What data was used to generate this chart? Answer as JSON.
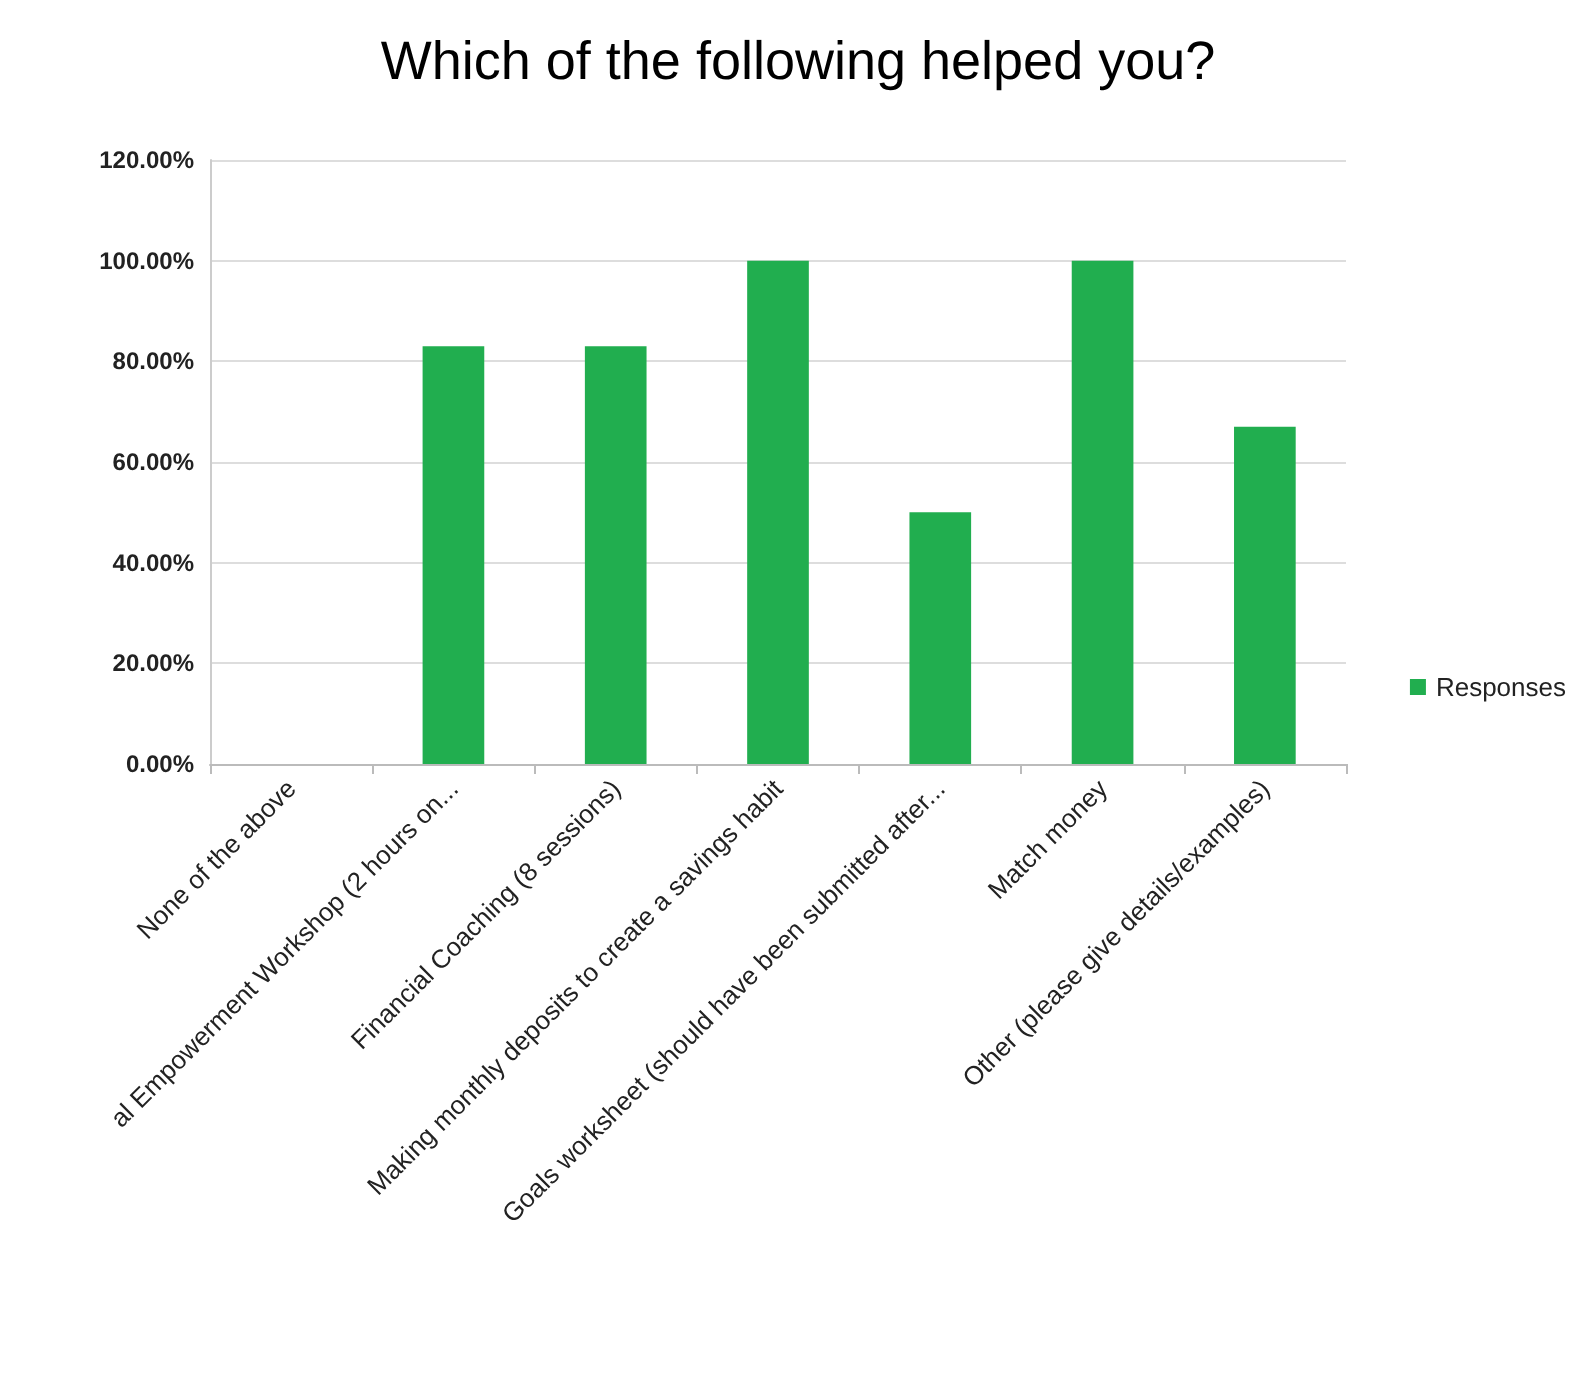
{
  "chart_data": {
    "type": "bar",
    "title": "Which of the following helped you?",
    "categories": [
      "None of the above",
      "al Empowerment Workshop (2 hours on...",
      "Financial Coaching (8 sessions)",
      "Making monthly deposits to create a savings habit",
      "Goals worksheet (should have been submitted after...",
      "Match money",
      "Other (please give details/examples)"
    ],
    "series": [
      {
        "name": "Responses",
        "color": "#21ae4f",
        "values": [
          0,
          83,
          83,
          100,
          50,
          100,
          67
        ]
      }
    ],
    "ylim": [
      0,
      120
    ],
    "yticks": [
      {
        "value": 0,
        "label": "0.00%"
      },
      {
        "value": 20,
        "label": "20.00%"
      },
      {
        "value": 40,
        "label": "40.00%"
      },
      {
        "value": 60,
        "label": "60.00%"
      },
      {
        "value": 80,
        "label": "80.00%"
      },
      {
        "value": 100,
        "label": "100.00%"
      },
      {
        "value": 120,
        "label": "120.00%"
      }
    ],
    "grid": "y",
    "legend": "right"
  }
}
